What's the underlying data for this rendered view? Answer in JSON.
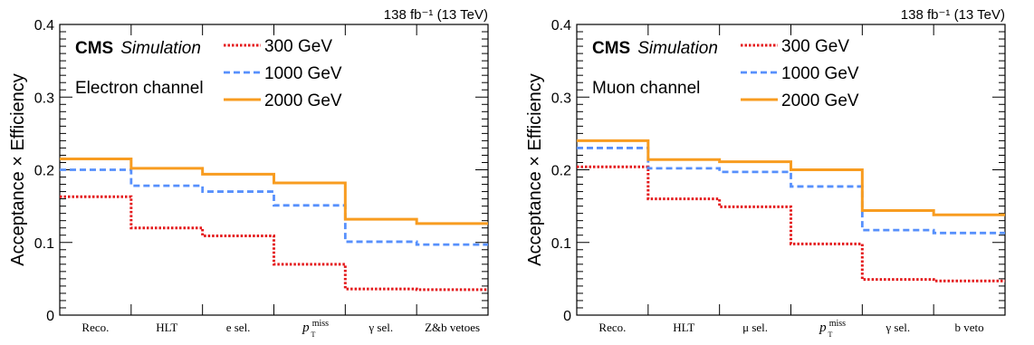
{
  "chart_data": [
    {
      "type": "line",
      "step": true,
      "ylabel": "Acceptance × Efficiency",
      "ylim": [
        0,
        0.4
      ],
      "yticks": [
        "0",
        "0.1",
        "0.2",
        "0.3",
        "0.4"
      ],
      "categories": [
        "Reco.",
        "HLT",
        "e sel.",
        "p_T^miss",
        "γ sel.",
        "Z&b vetoes"
      ],
      "lumi_label": "138 fb⁻¹ (13 TeV)",
      "experiment": "CMS",
      "experiment_sub": "Simulation",
      "channel": "Electron channel",
      "series": [
        {
          "name": "300 GeV",
          "color": "#e41a1c",
          "style": "dotted",
          "values": [
            0.163,
            0.12,
            0.109,
            0.07,
            0.036,
            0.035
          ]
        },
        {
          "name": "1000 GeV",
          "color": "#5790fc",
          "style": "dashed",
          "values": [
            0.2,
            0.178,
            0.17,
            0.151,
            0.101,
            0.097
          ]
        },
        {
          "name": "2000 GeV",
          "color": "#f89c20",
          "style": "solid",
          "values": [
            0.215,
            0.202,
            0.194,
            0.182,
            0.132,
            0.126
          ]
        }
      ]
    },
    {
      "type": "line",
      "step": true,
      "ylabel": "Acceptance × Efficiency",
      "ylim": [
        0,
        0.4
      ],
      "yticks": [
        "0",
        "0.1",
        "0.2",
        "0.3",
        "0.4"
      ],
      "categories": [
        "Reco.",
        "HLT",
        "μ sel.",
        "p_T^miss",
        "γ sel.",
        "b veto"
      ],
      "lumi_label": "138 fb⁻¹ (13 TeV)",
      "experiment": "CMS",
      "experiment_sub": "Simulation",
      "channel": "Muon channel",
      "series": [
        {
          "name": "300 GeV",
          "color": "#e41a1c",
          "style": "dotted",
          "values": [
            0.204,
            0.16,
            0.149,
            0.098,
            0.049,
            0.047
          ]
        },
        {
          "name": "1000 GeV",
          "color": "#5790fc",
          "style": "dashed",
          "values": [
            0.23,
            0.202,
            0.197,
            0.177,
            0.117,
            0.113
          ]
        },
        {
          "name": "2000 GeV",
          "color": "#f89c20",
          "style": "solid",
          "values": [
            0.24,
            0.214,
            0.211,
            0.2,
            0.144,
            0.138
          ]
        }
      ]
    }
  ]
}
